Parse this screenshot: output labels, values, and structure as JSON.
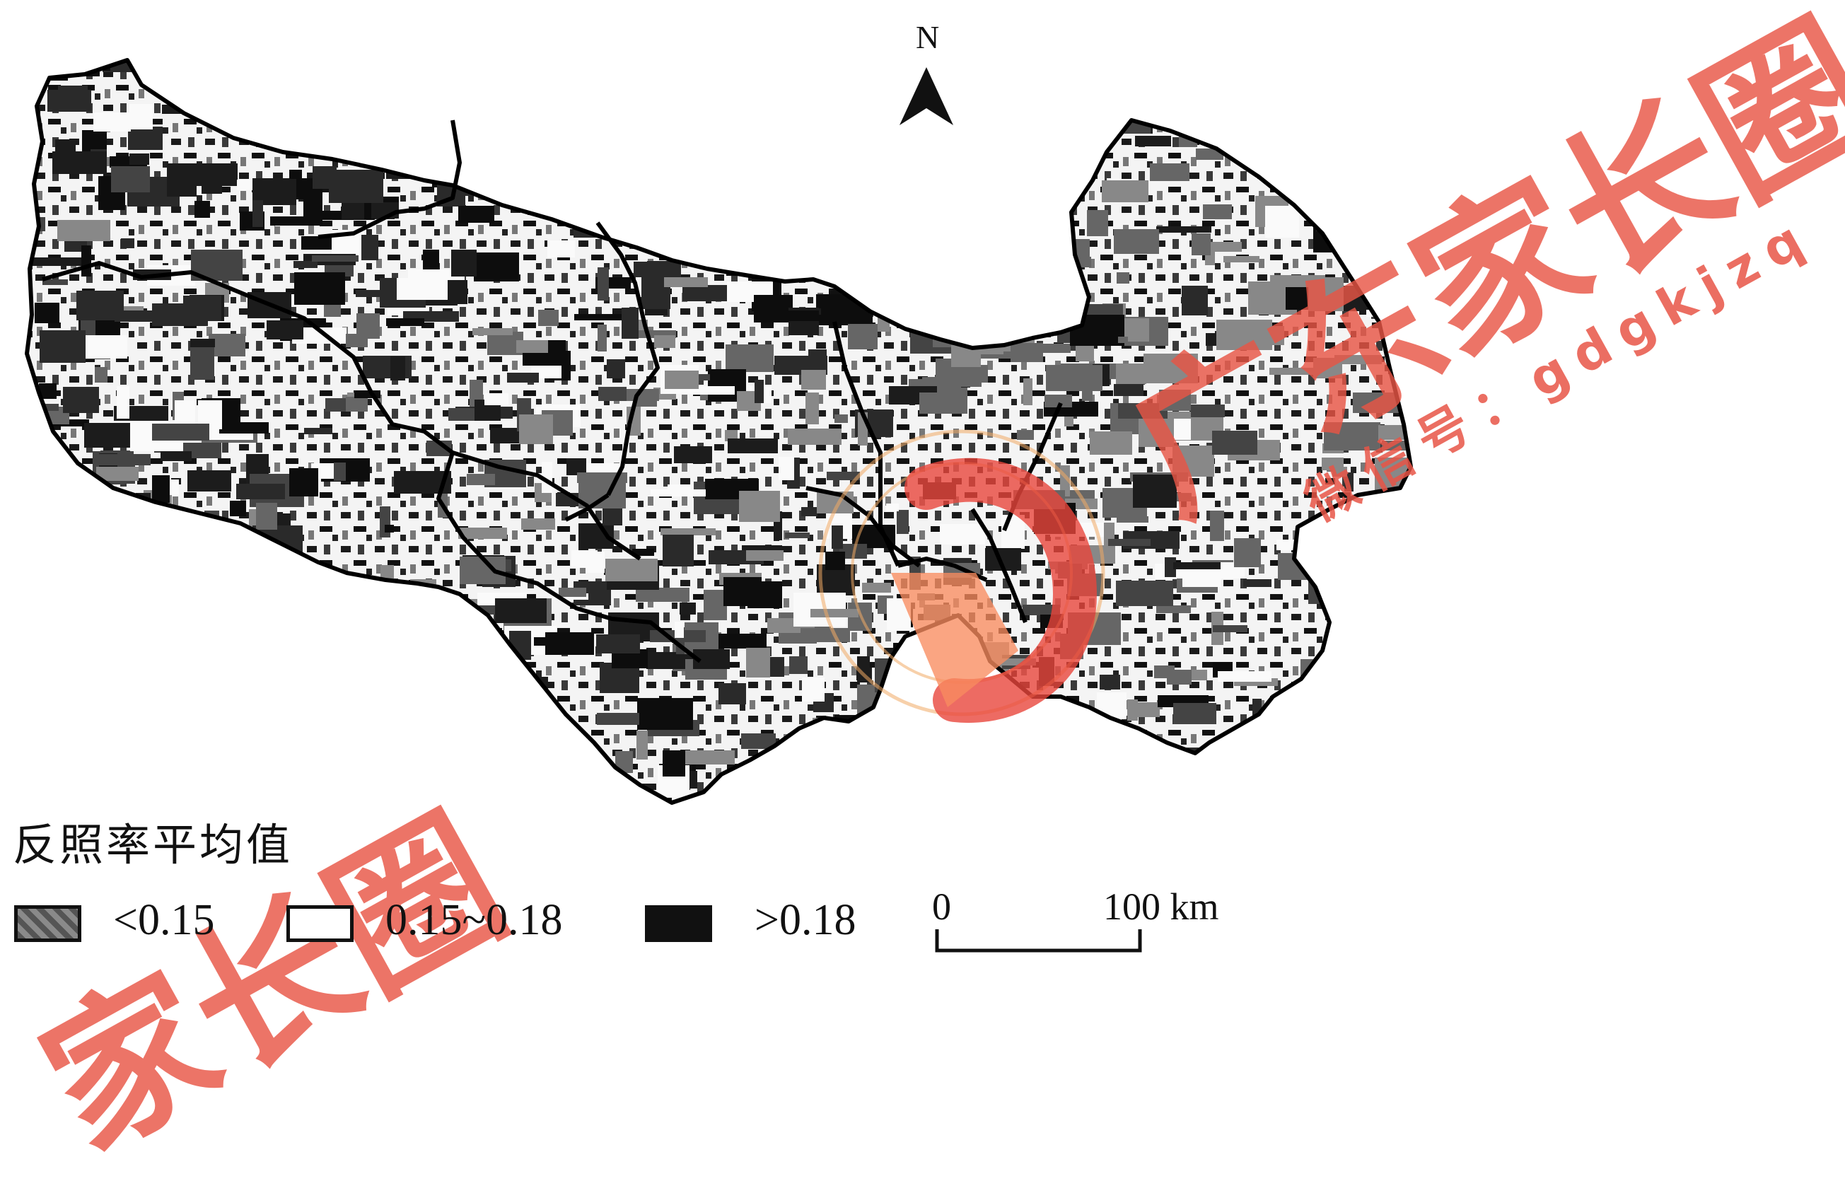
{
  "map": {
    "north_label": "N",
    "legend": {
      "title": "反照率平均值",
      "items": [
        {
          "label": "<0.15",
          "fill": "#666666"
        },
        {
          "label": "0.15~0.18",
          "fill": "#ffffff"
        },
        {
          "label": ">0.18",
          "fill": "#111111"
        }
      ]
    },
    "scale_bar": {
      "start": "0",
      "end": "100 km"
    }
  },
  "watermark": {
    "brand": "广东家长圈",
    "wechat": "微信号：gdgkjzq",
    "bottom_fragment": "家长圈",
    "color": "#e85546"
  }
}
